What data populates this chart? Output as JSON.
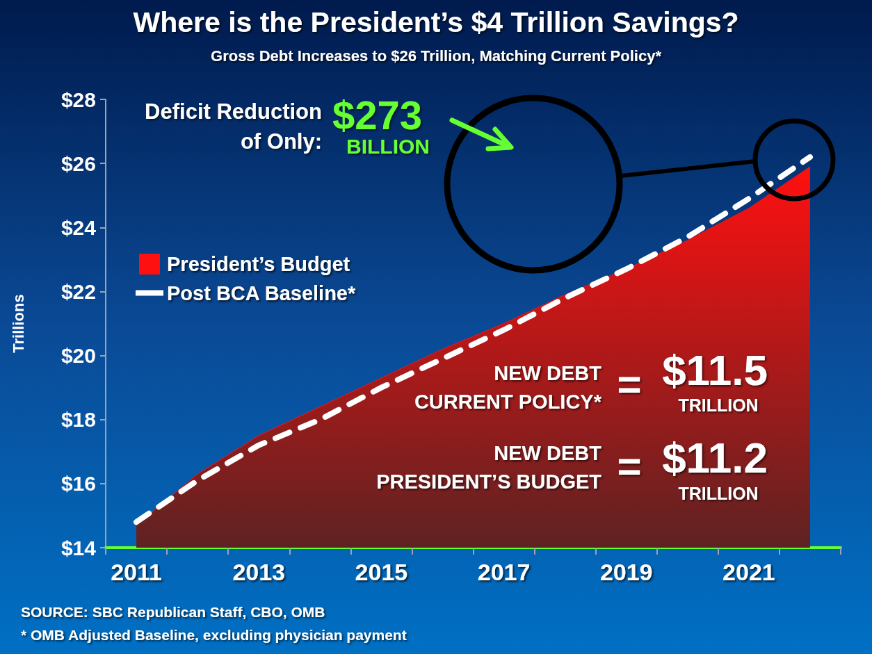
{
  "chart_data": {
    "type": "area",
    "title": "Where is the President’s $4 Trillion Savings?",
    "subtitle": "Gross Debt Increases to $26 Trillion, Matching Current Policy*",
    "ylabel": "Trillions",
    "categories": [
      "2011",
      null,
      "2013",
      null,
      "2015",
      null,
      "2017",
      null,
      "2019",
      null,
      "2021",
      null
    ],
    "series": [
      {
        "name": "President’s Budget",
        "color": "#ff1010",
        "values": [
          14.7,
          16.3,
          17.5,
          18.4,
          19.3,
          20.2,
          21.0,
          21.9,
          22.7,
          23.6,
          24.6,
          25.9
        ]
      },
      {
        "name": "Post BCA Baseline*",
        "type": "line",
        "line_style": "dashed",
        "color": "#ffffff",
        "values": [
          14.8,
          16.1,
          17.2,
          18.0,
          19.0,
          19.9,
          20.8,
          21.8,
          22.7,
          23.7,
          24.9,
          26.2
        ]
      }
    ],
    "ylim": [
      14,
      28
    ],
    "yticks": [
      {
        "value": 14,
        "label": "$14"
      },
      {
        "value": 16,
        "label": "$16"
      },
      {
        "value": 18,
        "label": "$18"
      },
      {
        "value": 20,
        "label": "$20"
      },
      {
        "value": 22,
        "label": "$22"
      },
      {
        "value": 24,
        "label": "$24"
      },
      {
        "value": 26,
        "label": "$26"
      },
      {
        "value": 28,
        "label": "$28"
      }
    ],
    "grid": false,
    "legend": "left",
    "marker": "none",
    "annotations": [
      "Deficit Reduction",
      "of Only:",
      "$273",
      "BILLION",
      "NEW DEBT",
      "CURRENT POLICY*",
      "=",
      "$11.5",
      "TRILLION",
      "NEW DEBT",
      "PRESIDENT’S BUDGET",
      "=",
      "$11.2",
      "TRILLION",
      "SOURCE: SBC Republican Staff, CBO, OMB",
      "* OMB Adjusted Baseline, excluding physician payment"
    ]
  }
}
